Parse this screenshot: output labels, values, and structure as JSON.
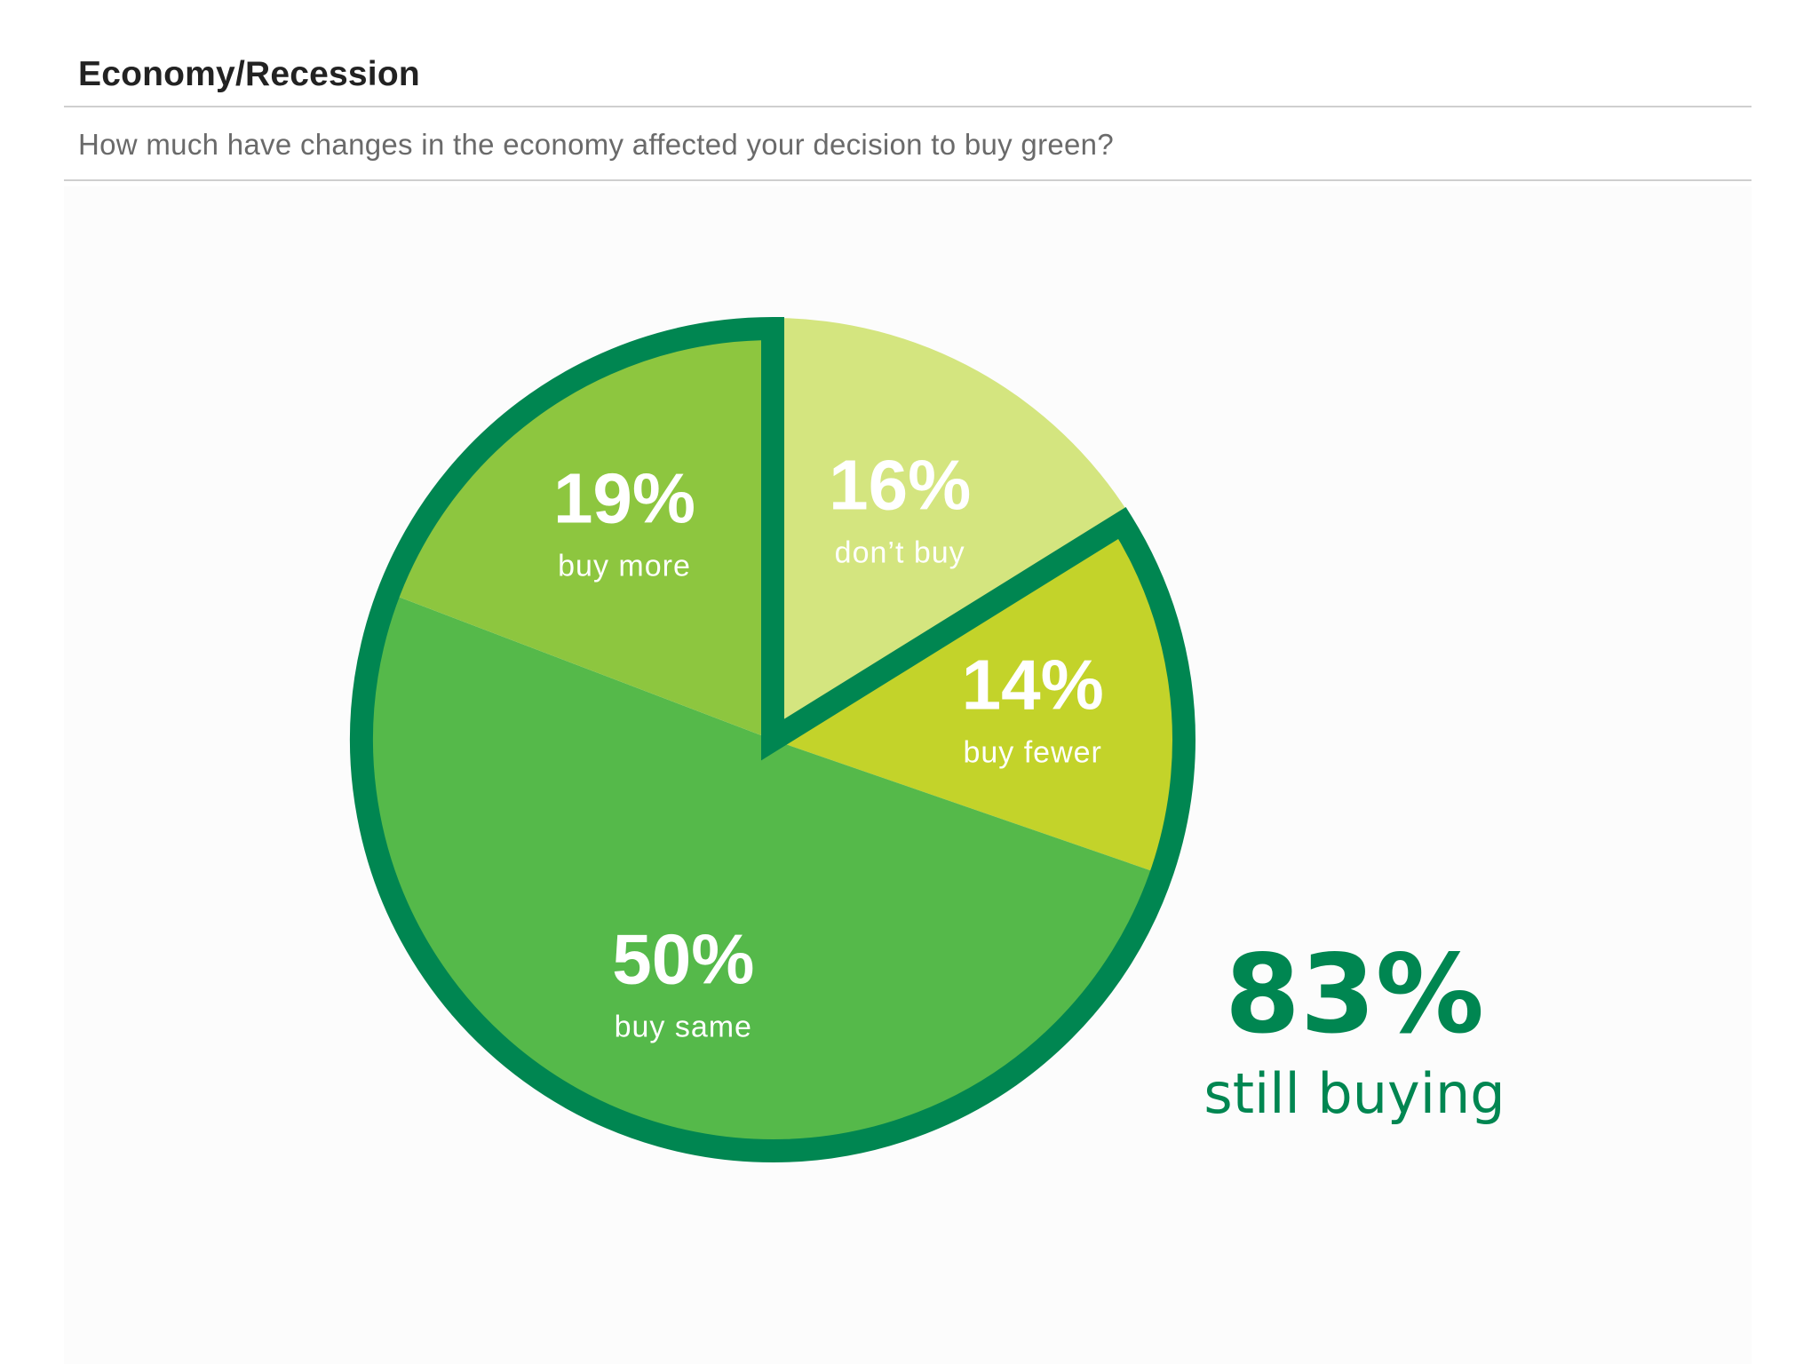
{
  "header": {
    "title": "Economy/Recession",
    "question": "How much have changes in the economy affected your decision to buy green?"
  },
  "chart_data": {
    "type": "pie",
    "title": "Economy/Recession",
    "subtitle": "How much have changes in the economy affected your decision to buy green?",
    "start_angle_deg": 0,
    "direction": "clockwise",
    "slices": [
      {
        "label": "don’t buy",
        "value": 16,
        "value_label": "16%",
        "color": "#d4e57f",
        "outlined": false
      },
      {
        "label": "buy fewer",
        "value": 14,
        "value_label": "14%",
        "color": "#c3d32a",
        "outlined": true
      },
      {
        "label": "buy same",
        "value": 50,
        "value_label": "50%",
        "color": "#55b94a",
        "outlined": true
      },
      {
        "label": "buy more",
        "value": 19,
        "value_label": "19%",
        "color": "#8dc63f",
        "outlined": true
      }
    ],
    "outline_color": "#008651",
    "callout": {
      "value": "83%",
      "label": "still buying"
    }
  }
}
